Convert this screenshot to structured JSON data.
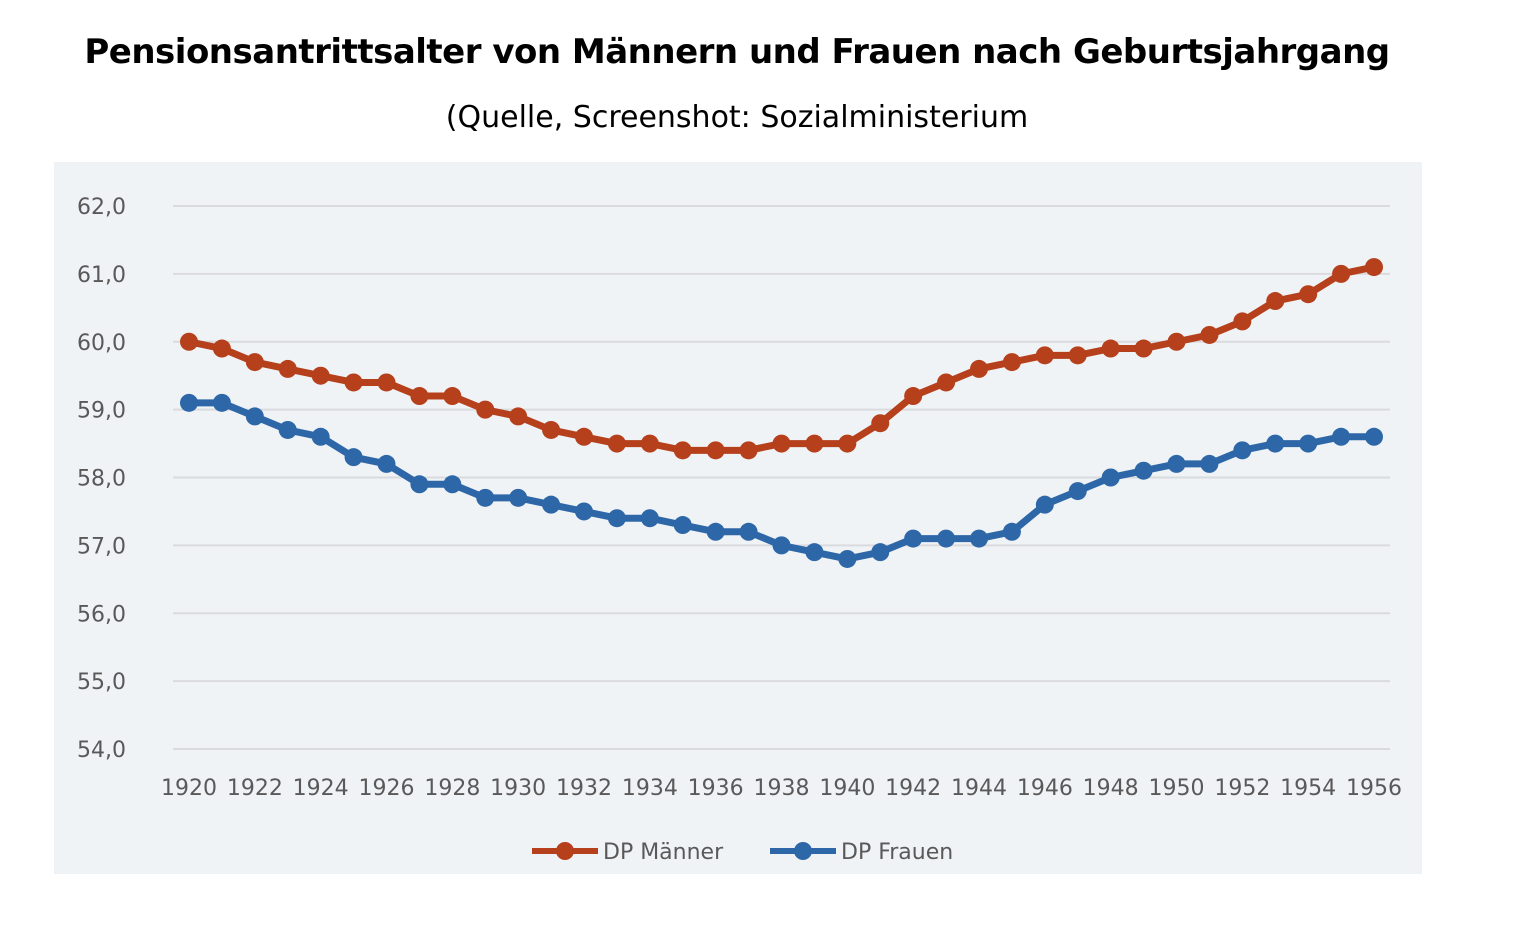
{
  "title": "Pensionsantrittsalter von Männern und Frauen nach Geburtsjahrgang",
  "subtitle": "(Quelle, Screenshot: Sozialministerium",
  "chart_data": {
    "type": "line",
    "title": "Pensionsantrittsalter von Männern und Frauen nach Geburtsjahrgang",
    "subtitle": "(Quelle, Screenshot: Sozialministerium",
    "xlabel": "",
    "ylabel": "",
    "ylim": [
      54.0,
      62.0
    ],
    "yticks": [
      "54,0",
      "55,0",
      "56,0",
      "57,0",
      "58,0",
      "59,0",
      "60,0",
      "61,0",
      "62,0"
    ],
    "ytick_values": [
      54,
      55,
      56,
      57,
      58,
      59,
      60,
      61,
      62
    ],
    "xticks": [
      "1920",
      "1922",
      "1924",
      "1926",
      "1928",
      "1930",
      "1932",
      "1934",
      "1936",
      "1938",
      "1940",
      "1942",
      "1944",
      "1946",
      "1948",
      "1950",
      "1952",
      "1954",
      "1956"
    ],
    "x": [
      1920,
      1921,
      1922,
      1923,
      1924,
      1925,
      1926,
      1927,
      1928,
      1929,
      1930,
      1931,
      1932,
      1933,
      1934,
      1935,
      1936,
      1937,
      1938,
      1939,
      1940,
      1941,
      1942,
      1943,
      1944,
      1945,
      1946,
      1947,
      1948,
      1949,
      1950,
      1951,
      1952,
      1953,
      1954,
      1955,
      1956
    ],
    "grid": true,
    "legend_position": "bottom",
    "series": [
      {
        "name": "DP Männer",
        "color": "#b5401b",
        "values": [
          60.0,
          59.9,
          59.7,
          59.6,
          59.5,
          59.4,
          59.4,
          59.2,
          59.2,
          59.0,
          58.9,
          58.7,
          58.6,
          58.5,
          58.5,
          58.4,
          58.4,
          58.4,
          58.5,
          58.5,
          58.5,
          58.8,
          59.2,
          59.4,
          59.6,
          59.7,
          59.8,
          59.8,
          59.9,
          59.9,
          60.0,
          60.1,
          60.3,
          60.6,
          60.7,
          61.0,
          61.1
        ]
      },
      {
        "name": "DP Frauen",
        "color": "#2e67a8",
        "values": [
          59.1,
          59.1,
          58.9,
          58.7,
          58.6,
          58.3,
          58.2,
          57.9,
          57.9,
          57.7,
          57.7,
          57.6,
          57.5,
          57.4,
          57.4,
          57.3,
          57.2,
          57.2,
          57.0,
          56.9,
          56.8,
          56.9,
          57.1,
          57.1,
          57.1,
          57.2,
          57.6,
          57.8,
          58.0,
          58.1,
          58.2,
          58.2,
          58.4,
          58.5,
          58.5,
          58.6,
          58.6
        ]
      }
    ]
  }
}
